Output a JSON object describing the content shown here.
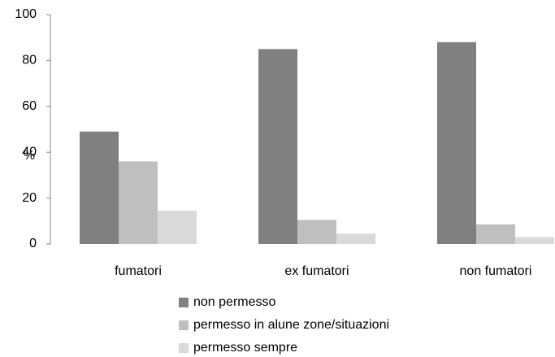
{
  "chart_data": {
    "type": "bar",
    "y_label": "%",
    "categories": [
      "fumatori",
      "ex fumatori",
      "non fumatori"
    ],
    "series": [
      {
        "name": "non permesso",
        "color": "#808080",
        "values": [
          49,
          85,
          88
        ]
      },
      {
        "name": "permesso in alune zone/situazioni",
        "color": "#bfbfbf",
        "values": [
          36,
          10.5,
          8.5
        ]
      },
      {
        "name": "permesso sempre",
        "color": "#d9d9d9",
        "values": [
          14.5,
          4.5,
          3
        ]
      }
    ],
    "ylim": [
      0,
      100
    ],
    "yticks": [
      0,
      20,
      40,
      60,
      80,
      100
    ],
    "grid": false
  }
}
